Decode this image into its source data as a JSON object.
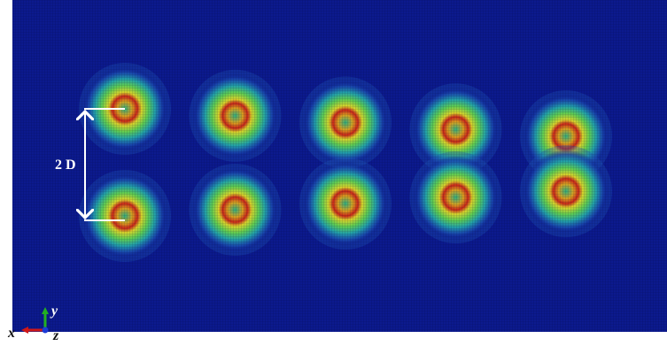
{
  "figure": {
    "dimension_label": "2 D",
    "background_color": "#0c1a8e",
    "vortex_count_per_row": 5,
    "colormap": [
      "#0c1a8e",
      "#1d5fb8",
      "#2fb6a6",
      "#6fd24d",
      "#d8df2c",
      "#e07b1a",
      "#c81f12"
    ]
  },
  "axes_triad": {
    "x_label": "x",
    "y_label": "y",
    "z_label": "z",
    "x_color": "#d01818",
    "y_color": "#22b022",
    "z_color": "#1c3bd6"
  }
}
